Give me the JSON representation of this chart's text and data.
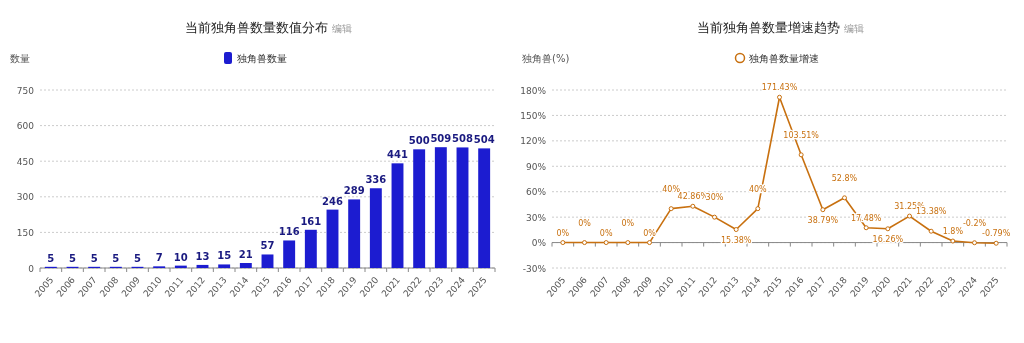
{
  "chart_data": [
    {
      "type": "bar",
      "title": "当前独角兽数量数值分布",
      "annotations": [
        "编辑"
      ],
      "ylabel": "数量",
      "categories": [
        "2005",
        "2006",
        "2007",
        "2008",
        "2009",
        "2010",
        "2011",
        "2012",
        "2013",
        "2014",
        "2015",
        "2016",
        "2017",
        "2018",
        "2019",
        "2020",
        "2021",
        "2022",
        "2023",
        "2024",
        "2025"
      ],
      "series": [
        {
          "name": "独角兽数量",
          "color": "#1c1cd0",
          "values": [
            5,
            5,
            5,
            5,
            5,
            7,
            10,
            13,
            15,
            21,
            57,
            116,
            161,
            246,
            289,
            336,
            441,
            500,
            509,
            508,
            504
          ]
        }
      ],
      "ylim": [
        0,
        750
      ],
      "yticks": [
        0,
        150,
        300,
        450,
        600,
        750
      ],
      "grid": "y",
      "legend": "top",
      "data_labels": true
    },
    {
      "type": "line",
      "title": "当前独角兽数量增速趋势",
      "annotations": [
        "编辑"
      ],
      "ylabel": "独角兽(%)",
      "categories": [
        "2005",
        "2006",
        "2007",
        "2008",
        "2009",
        "2010",
        "2011",
        "2012",
        "2013",
        "2014",
        "2015",
        "2016",
        "2017",
        "2018",
        "2019",
        "2020",
        "2021",
        "2022",
        "2023",
        "2024",
        "2025"
      ],
      "series": [
        {
          "name": "独角兽数量增速",
          "color": "#c8700f",
          "values": [
            0,
            0,
            0,
            0,
            0,
            40,
            42.86,
            30,
            15.38,
            40,
            171.43,
            103.51,
            38.79,
            52.8,
            17.48,
            16.26,
            31.25,
            13.38,
            1.8,
            -0.2,
            -0.79
          ],
          "value_labels": [
            "0%",
            "0%",
            "0%",
            "0%",
            "0%",
            "40%",
            "42.86%",
            "30%",
            "15.38%",
            "40%",
            "171.43%",
            "103.51%",
            "38.79%",
            "52.8%",
            "17.48%",
            "16.26%",
            "31.25%",
            "13.38%",
            "1.8%",
            "-0.2%",
            "-0.79%"
          ]
        }
      ],
      "ylim": [
        -30,
        180
      ],
      "yticks": [
        {
          "value": -30,
          "label": "-30%"
        },
        {
          "value": 0,
          "label": "0%"
        },
        {
          "value": 30,
          "label": "30%"
        },
        {
          "value": 60,
          "label": "60%"
        },
        {
          "value": 90,
          "label": "90%"
        },
        {
          "value": 120,
          "label": "120%"
        },
        {
          "value": 150,
          "label": "150%"
        },
        {
          "value": 180,
          "label": "180%"
        }
      ],
      "grid": "y",
      "legend": "top",
      "marker": "circle",
      "line_style": "solid"
    }
  ]
}
